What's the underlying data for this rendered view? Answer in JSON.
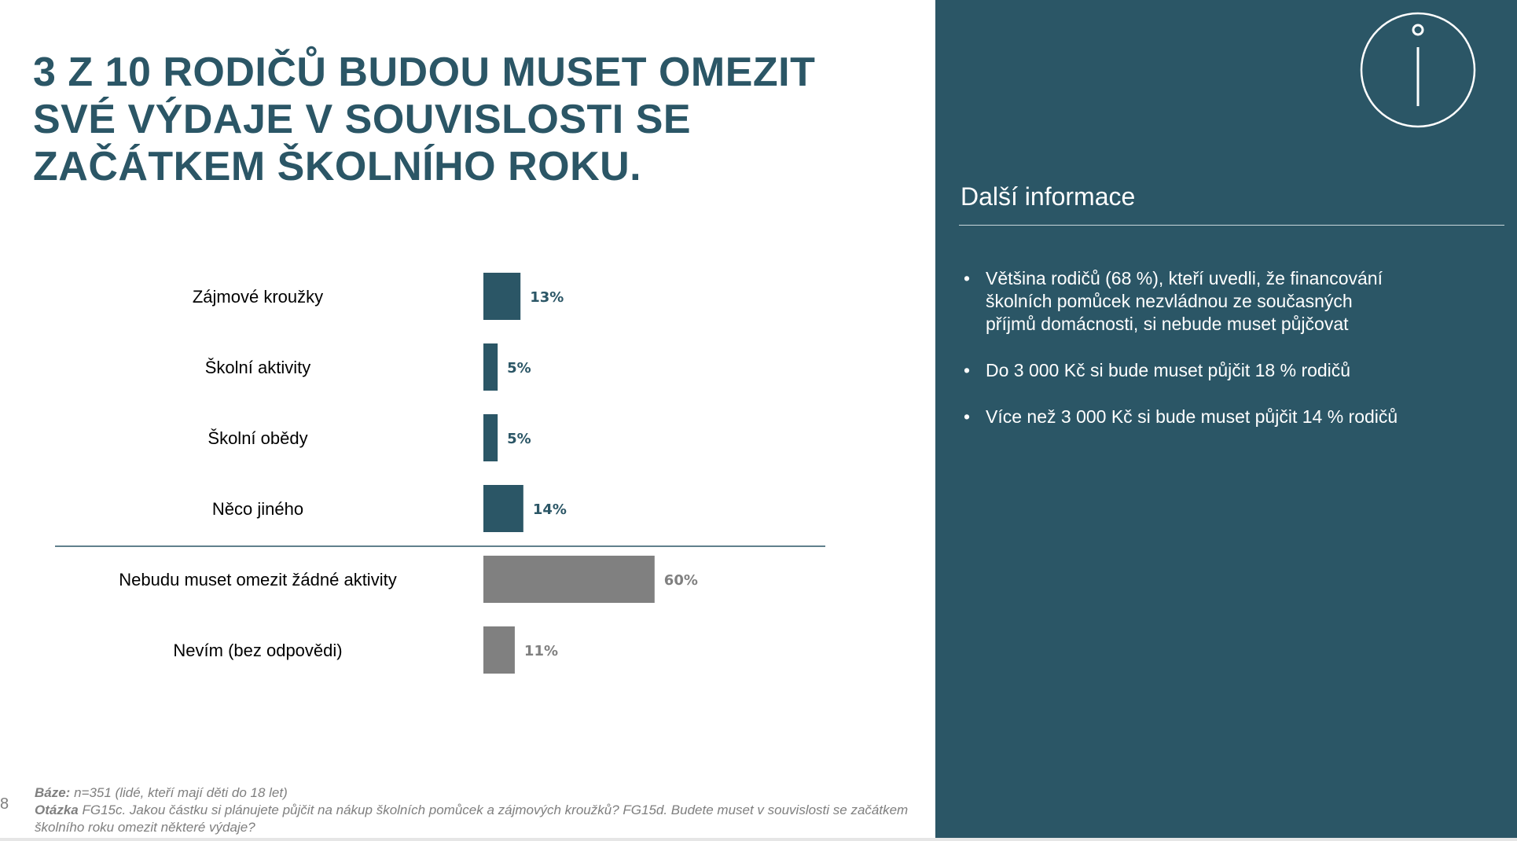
{
  "slide": {
    "title_lines": [
      "3 Z 10 RODIČŮ BUDOU MUSET OMEZIT",
      "SVÉ VÝDAJE V SOUVISLOSTI SE",
      "ZAČÁTKEM ŠKOLNÍHO ROKU."
    ],
    "page_number": "8",
    "footnote": {
      "base_label": "Báze:",
      "base_text": " n=351 (lidé, kteří mají děti do 18 let)",
      "question_label": "Otázka",
      "question_text": " FG15c. Jakou částku si plánujete půjčit na nákup školních pomůcek a zájmových kroužků? FG15d. Budete muset v souvislosti se začátkem školního roku omezit některé výdaje?"
    }
  },
  "panel": {
    "icon": "info-icon",
    "title": "Další informace",
    "bullets": [
      "Většina rodičů (68 %), kteří uvedli, že financování školních pomůcek nezvládnou ze současných příjmů domácnosti, si nebude muset půjčovat",
      "Do 3 000 Kč si bude muset půjčit 18 % rodičů",
      "Více než 3 000 Kč si bude muset půjčit 14 % rodičů"
    ]
  },
  "colors": {
    "accent": "#2b5666",
    "grey_bar": "#808080",
    "panel_bg": "#2b5666"
  },
  "chart_data": {
    "type": "bar",
    "orientation": "horizontal",
    "categories": [
      "Zájmové kroužky",
      "Školní aktivity",
      "Školní obědy",
      "Něco jiného",
      "Nebudu muset omezit žádné aktivity",
      "Nevím (bez odpovědi)"
    ],
    "values": [
      13,
      5,
      5,
      14,
      60,
      11
    ],
    "value_labels": [
      "13%",
      "5%",
      "5%",
      "14%",
      "60%",
      "11%"
    ],
    "bar_colors": [
      "#2b5666",
      "#2b5666",
      "#2b5666",
      "#2b5666",
      "#808080",
      "#808080"
    ],
    "label_colors": [
      "#2b5666",
      "#2b5666",
      "#2b5666",
      "#2b5666",
      "#808080",
      "#808080"
    ],
    "separator_after_index": 3,
    "xlim": [
      0,
      100
    ],
    "grid": false,
    "axes_visible": false
  }
}
